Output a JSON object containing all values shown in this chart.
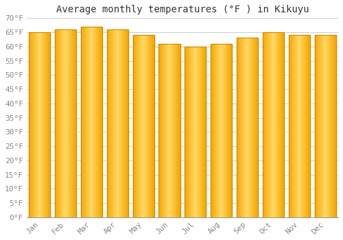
{
  "title": "Average monthly temperatures (°F ) in Kikuyu",
  "months": [
    "Jan",
    "Feb",
    "Mar",
    "Apr",
    "May",
    "Jun",
    "Jul",
    "Aug",
    "Sep",
    "Oct",
    "Nov",
    "Dec"
  ],
  "values": [
    65,
    66,
    67,
    66,
    64,
    61,
    60,
    61,
    63,
    65,
    64,
    64
  ],
  "bar_color_left": "#F5A800",
  "bar_color_center": "#FFD966",
  "bar_color_right": "#F5A800",
  "bar_edge_color": "#D08000",
  "background_color": "#FFFFFF",
  "plot_bg_color": "#FFFFFF",
  "grid_color": "#CCCCCC",
  "ylim": [
    0,
    70
  ],
  "ytick_step": 5,
  "title_fontsize": 10,
  "tick_fontsize": 8,
  "font_family": "monospace",
  "title_color": "#333333",
  "tick_color": "#888888"
}
